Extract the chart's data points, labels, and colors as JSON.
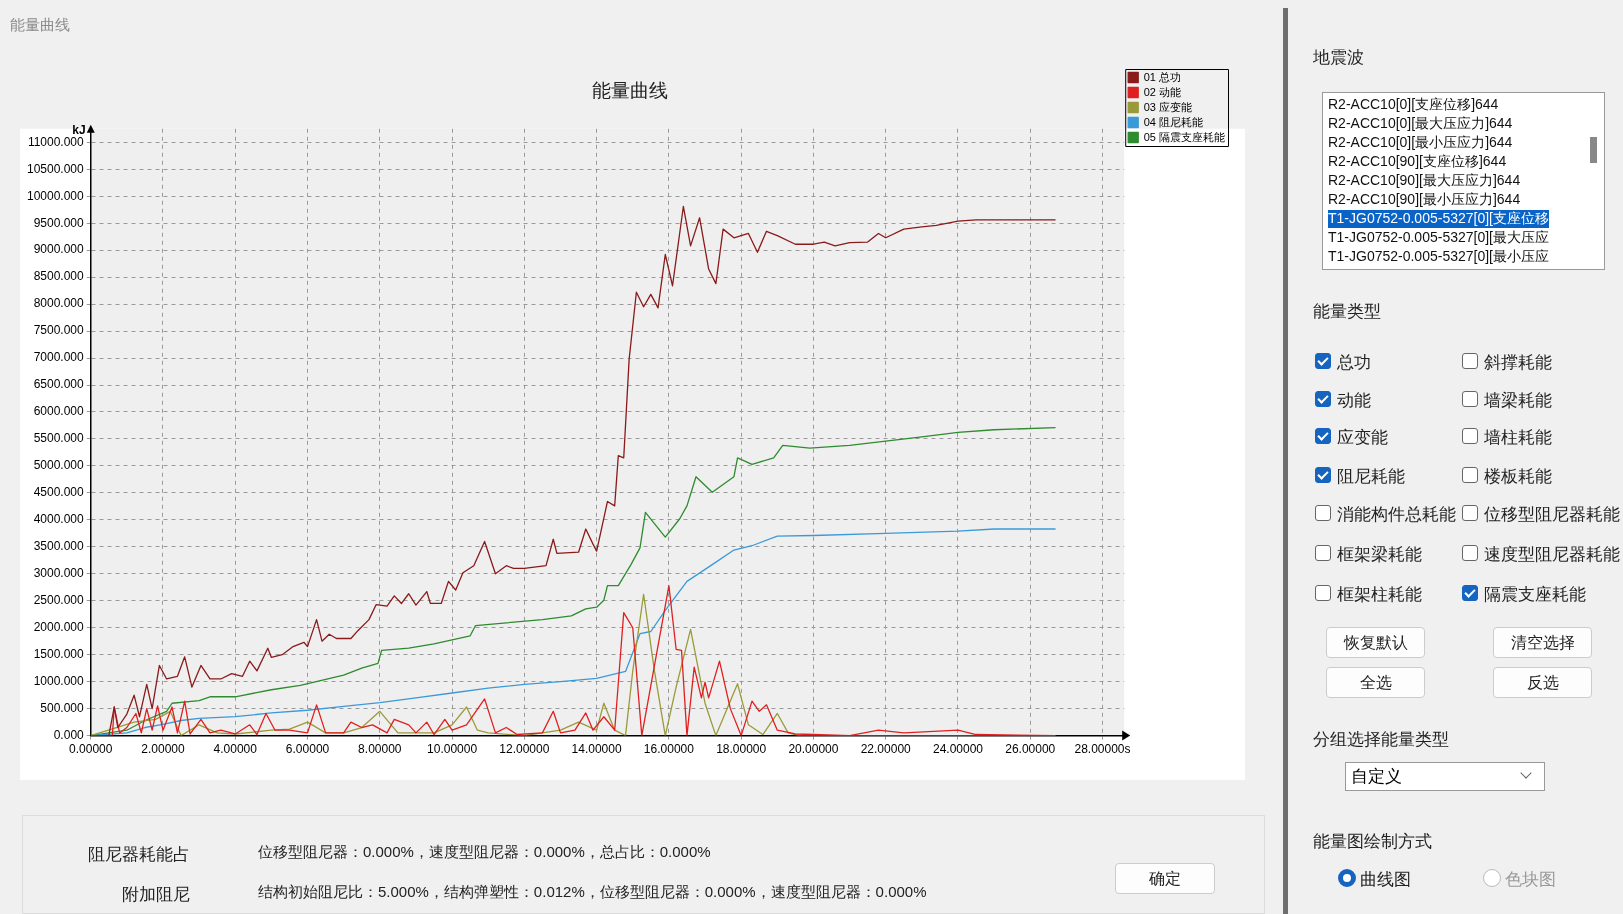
{
  "chart_data": [
    {
      "type": "line",
      "title": "能量曲线",
      "ylabel": "kJ",
      "xlim": [
        0,
        28.6
      ],
      "ylim": [
        0,
        11250
      ],
      "xticks": [
        {
          "value": 0,
          "label": "0.00000"
        },
        {
          "value": 2,
          "label": "2.00000"
        },
        {
          "value": 4,
          "label": "4.00000"
        },
        {
          "value": 6,
          "label": "6.00000"
        },
        {
          "value": 8,
          "label": "8.00000"
        },
        {
          "value": 10,
          "label": "10.00000"
        },
        {
          "value": 12,
          "label": "12.00000"
        },
        {
          "value": 14,
          "label": "14.00000"
        },
        {
          "value": 16,
          "label": "16.00000"
        },
        {
          "value": 18,
          "label": "18.00000"
        },
        {
          "value": 20,
          "label": "20.00000"
        },
        {
          "value": 22,
          "label": "22.00000"
        },
        {
          "value": 24,
          "label": "24.00000"
        },
        {
          "value": 26,
          "label": "26.00000"
        },
        {
          "value": 28,
          "label": "28.00000s"
        }
      ],
      "yticks": [
        {
          "value": 0,
          "label": "0.000"
        },
        {
          "value": 500,
          "label": "500.000"
        },
        {
          "value": 1000,
          "label": "1000.000"
        },
        {
          "value": 1500,
          "label": "1500.000"
        },
        {
          "value": 2000,
          "label": "2000.000"
        },
        {
          "value": 2500,
          "label": "2500.000"
        },
        {
          "value": 3000,
          "label": "3000.000"
        },
        {
          "value": 3500,
          "label": "3500.000"
        },
        {
          "value": 4000,
          "label": "4000.000"
        },
        {
          "value": 4500,
          "label": "4500.000"
        },
        {
          "value": 5000,
          "label": "5000.000"
        },
        {
          "value": 5500,
          "label": "5500.000"
        },
        {
          "value": 6000,
          "label": "6000.000"
        },
        {
          "value": 6500,
          "label": "6500.000"
        },
        {
          "value": 7000,
          "label": "7000.000"
        },
        {
          "value": 7500,
          "label": "7500.000"
        },
        {
          "value": 8000,
          "label": "8000.000"
        },
        {
          "value": 8500,
          "label": "8500.000"
        },
        {
          "value": 9000,
          "label": "9000.000"
        },
        {
          "value": 9500,
          "label": "9500.000"
        },
        {
          "value": 10000,
          "label": "10000.000"
        },
        {
          "value": 10500,
          "label": "10500.000"
        },
        {
          "value": 11000,
          "label": "11000.000"
        }
      ],
      "grid": true,
      "legend": "right",
      "marker": "none",
      "line_style": "solid",
      "series": [
        {
          "name": "01 总功",
          "color": "#8b1a1a",
          "x": [
            0,
            0.5,
            0.65,
            0.75,
            1.0,
            1.2,
            1.35,
            1.55,
            1.7,
            1.9,
            2.1,
            2.4,
            2.6,
            2.8,
            3.05,
            3.3,
            3.6,
            3.9,
            4.2,
            4.4,
            4.6,
            4.9,
            5.0,
            5.3,
            5.6,
            5.9,
            6.0,
            6.25,
            6.4,
            6.6,
            6.8,
            7.2,
            7.4,
            7.7,
            7.9,
            8.2,
            8.4,
            8.6,
            8.8,
            9.0,
            9.3,
            9.4,
            9.7,
            9.9,
            10.1,
            10.3,
            10.6,
            10.9,
            11.2,
            11.5,
            11.7,
            12.0,
            12.6,
            12.8,
            12.9,
            13.5,
            13.7,
            13.9,
            14.0,
            14.3,
            14.5,
            14.6,
            14.75,
            14.9,
            15.1,
            15.3,
            15.5,
            15.7,
            15.9,
            16.1,
            16.4,
            16.6,
            16.85,
            17.1,
            17.3,
            17.5,
            17.8,
            18.2,
            18.45,
            18.7,
            19.0,
            19.5,
            20.0,
            20.3,
            20.6,
            21.0,
            21.5,
            21.8,
            22.0,
            22.5,
            23.0,
            23.4,
            24.0,
            24.5,
            25.0,
            26.7
          ],
          "values": [
            0,
            0,
            530,
            150,
            400,
            750,
            350,
            950,
            500,
            1300,
            1050,
            1100,
            1460,
            900,
            1300,
            1050,
            1050,
            1150,
            1100,
            1380,
            1200,
            1620,
            1450,
            1500,
            1650,
            1730,
            1650,
            2150,
            1750,
            1880,
            1800,
            1800,
            1950,
            2150,
            2430,
            2400,
            2590,
            2450,
            2630,
            2420,
            2670,
            2450,
            2450,
            2860,
            2700,
            3020,
            3150,
            3600,
            3000,
            3150,
            3100,
            3100,
            3150,
            3640,
            3380,
            3400,
            3830,
            3550,
            3420,
            4340,
            4260,
            5190,
            5150,
            6980,
            8220,
            7950,
            8180,
            7930,
            8920,
            8340,
            9810,
            9080,
            9600,
            8650,
            8380,
            9390,
            9230,
            9310,
            8960,
            9350,
            9270,
            9110,
            9110,
            9150,
            9080,
            9140,
            9150,
            9310,
            9230,
            9390,
            9430,
            9460,
            9540,
            9560,
            9560,
            9560
          ]
        },
        {
          "name": "02 动能",
          "color": "#e02020",
          "x": [
            0,
            0.6,
            0.65,
            0.8,
            1.0,
            1.25,
            1.4,
            1.55,
            1.7,
            1.85,
            2.0,
            2.25,
            2.4,
            2.6,
            2.75,
            3.05,
            3.3,
            3.6,
            4.0,
            4.4,
            4.6,
            4.85,
            5.1,
            5.5,
            6.0,
            6.25,
            6.5,
            7.0,
            7.2,
            7.5,
            7.8,
            8.2,
            8.4,
            8.8,
            9.0,
            9.3,
            9.5,
            9.8,
            10.0,
            10.4,
            10.9,
            11.2,
            11.5,
            11.8,
            12.5,
            12.8,
            13.0,
            13.4,
            13.7,
            13.9,
            14.2,
            14.5,
            14.75,
            15.0,
            15.25,
            16.0,
            16.2,
            16.35,
            16.5,
            16.7,
            16.9,
            17.0,
            17.1,
            17.4,
            17.7,
            18.0,
            18.3,
            18.5,
            18.7,
            19.0,
            19.5,
            20.0,
            21.0,
            21.8,
            22.5,
            24.0,
            24.5,
            26.7
          ],
          "values": [
            0,
            0,
            530,
            50,
            150,
            410,
            50,
            500,
            100,
            550,
            100,
            530,
            50,
            640,
            30,
            300,
            50,
            100,
            30,
            200,
            20,
            410,
            100,
            100,
            50,
            570,
            50,
            50,
            250,
            150,
            200,
            50,
            300,
            200,
            50,
            250,
            20,
            300,
            100,
            200,
            680,
            50,
            150,
            20,
            50,
            450,
            50,
            100,
            420,
            100,
            350,
            100,
            2280,
            2000,
            0,
            2780,
            1600,
            1580,
            0,
            1270,
            700,
            990,
            700,
            1380,
            500,
            0,
            640,
            450,
            570,
            100,
            30,
            20,
            0,
            100,
            50,
            100,
            20,
            0
          ]
        },
        {
          "name": "03 应变能",
          "color": "#9a9a3a",
          "x": [
            0,
            1.2,
            1.8,
            2.2,
            2.5,
            3.0,
            3.5,
            4.0,
            5.0,
            5.5,
            6.0,
            6.5,
            7.0,
            7.5,
            8.0,
            8.5,
            9.0,
            9.5,
            10.0,
            10.4,
            10.7,
            11.0,
            12.0,
            13.0,
            13.5,
            14.0,
            14.2,
            14.5,
            14.8,
            15.0,
            15.3,
            15.6,
            15.9,
            16.2,
            16.6,
            17.0,
            17.3,
            17.9,
            18.2,
            18.6,
            19.0,
            19.3,
            19.6,
            26.7
          ],
          "values": [
            0,
            250,
            300,
            450,
            0,
            200,
            50,
            30,
            100,
            120,
            250,
            50,
            50,
            150,
            450,
            50,
            50,
            50,
            200,
            530,
            100,
            50,
            0,
            100,
            250,
            100,
            600,
            100,
            0,
            1200,
            2620,
            1200,
            0,
            900,
            1970,
            600,
            0,
            960,
            200,
            20,
            410,
            50,
            0,
            0
          ]
        },
        {
          "name": "04 阻尼耗能",
          "color": "#3a9ad9",
          "x": [
            0,
            1.0,
            1.5,
            2.0,
            2.5,
            3.0,
            4.0,
            5.0,
            6.0,
            7.0,
            8.0,
            9.0,
            10.0,
            11.0,
            12.0,
            13.0,
            14.0,
            14.8,
            15.2,
            15.5,
            15.9,
            16.5,
            17.2,
            17.8,
            18.3,
            19.0,
            20.0,
            22.0,
            24.0,
            25.0,
            26.7
          ],
          "values": [
            0,
            50,
            150,
            210,
            280,
            320,
            350,
            420,
            470,
            540,
            610,
            700,
            790,
            880,
            950,
            1000,
            1060,
            1190,
            1890,
            1930,
            2320,
            2860,
            3170,
            3440,
            3520,
            3700,
            3710,
            3750,
            3790,
            3830,
            3830
          ]
        },
        {
          "name": "05 隔震支座耗能",
          "color": "#2e8b2e",
          "x": [
            0,
            1.0,
            1.5,
            2.1,
            2.25,
            3.0,
            3.3,
            4.0,
            5.0,
            5.8,
            6.3,
            7.0,
            7.5,
            7.95,
            8.05,
            8.8,
            9.5,
            10.5,
            10.65,
            11.5,
            12.5,
            13.3,
            13.7,
            14.0,
            14.2,
            14.3,
            14.6,
            14.95,
            15.2,
            15.35,
            15.9,
            16.3,
            16.5,
            16.75,
            17.2,
            17.8,
            17.9,
            18.3,
            18.9,
            19.15,
            19.9,
            21.0,
            22.0,
            23.0,
            24.0,
            25.0,
            26.7
          ],
          "values": [
            0,
            100,
            280,
            450,
            600,
            650,
            720,
            720,
            850,
            930,
            1010,
            1120,
            1250,
            1340,
            1580,
            1620,
            1700,
            1850,
            2040,
            2090,
            2150,
            2220,
            2350,
            2380,
            2510,
            2780,
            2780,
            3170,
            3480,
            4140,
            3680,
            4020,
            4260,
            4800,
            4510,
            4800,
            5150,
            5030,
            5150,
            5380,
            5330,
            5380,
            5460,
            5540,
            5620,
            5670,
            5710
          ]
        }
      ]
    },
    {
      "type": "other",
      "annotations": [
        "能量曲线",
        "地震波",
        "R2-ACC10[0][支座位移]644",
        "R2-ACC10[0][最大压应力]644",
        "R2-ACC10[0][最小压应力]644",
        "R2-ACC10[90][支座位移]644",
        "R2-ACC10[90][最大压应力]644",
        "R2-ACC10[90][最小压应力]644",
        "T1-JG0752-0.005-5327[0][支座位移",
        "T1-JG0752-0.005-5327[0][最大压应",
        "T1-JG0752-0.005-5327[0][最小压应",
        "能量类型",
        "总功",
        "动能",
        "应变能",
        "阻尼耗能",
        "消能构件总耗能",
        "框架梁耗能",
        "框架柱耗能",
        "斜撑耗能",
        "墙梁耗能",
        "墙柱耗能",
        "楼板耗能",
        "位移型阻尼器耗能",
        "速度型阻尼器耗能",
        "隔震支座耗能",
        "恢复默认",
        "清空选择",
        "全选",
        "反选",
        "分组选择能量类型",
        "自定义",
        "能量图绘制方式",
        "曲线图",
        "色块图",
        "阻尼器耗能占",
        "位移型阻尼器：0.000%，速度型阻尼器：0.000%，总占比：0.000%",
        "附加阻尼",
        "结构初始阻尼比：5.000%，结构弹塑性：0.012%，位移型阻尼器：0.000%，速度型阻尼器：0.000%",
        "确定"
      ]
    }
  ]
}
